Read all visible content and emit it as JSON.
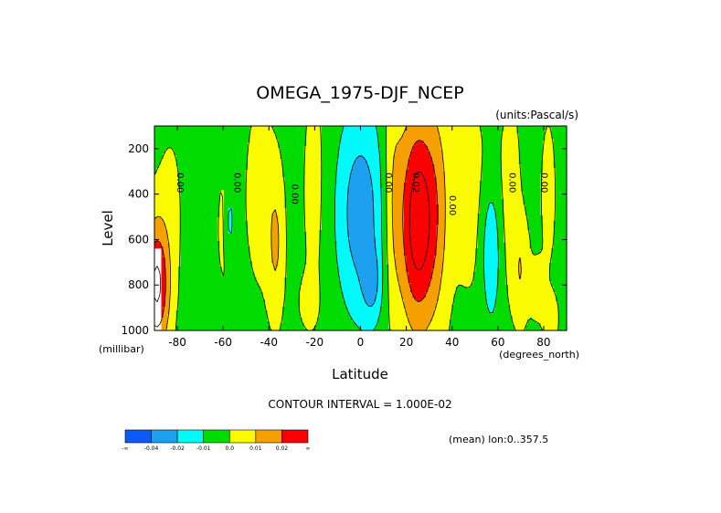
{
  "chart_data": {
    "type": "heatmap",
    "title": "OMEGA_1975-DJF_NCEP",
    "units_label": "(units:Pascal/s)",
    "xlabel": "Latitude",
    "ylabel": "Level",
    "x_unit_label": "(degrees_north)",
    "y_unit_label": "(millibar)",
    "xlim": [
      -90,
      90
    ],
    "ylim": [
      100,
      1000
    ],
    "y_reversed": true,
    "x_ticks": [
      -80,
      -60,
      -40,
      -20,
      0,
      20,
      40,
      60,
      80
    ],
    "y_ticks": [
      200,
      400,
      600,
      800,
      1000
    ],
    "contour_interval_label": "CONTOUR INTERVAL = 1.000E-02",
    "mean_label": "(mean) lon:0..357.5",
    "legend": {
      "colors": [
        "#0a5af5",
        "#1ea0f0",
        "#00fafa",
        "#00dc00",
        "#fafa00",
        "#f5a000",
        "#fa0000"
      ],
      "labels": [
        "-∞",
        "-0.04",
        "-0.02",
        "-0.01",
        "0.0",
        "0.01",
        "0.02",
        "∞"
      ],
      "bounds": [
        -1,
        -0.04,
        -0.02,
        -0.01,
        0.0,
        0.01,
        0.02,
        1
      ]
    },
    "contour_labels": [
      {
        "text": "0.00",
        "lat": -80,
        "lev": 350
      },
      {
        "text": "0.00",
        "lat": -55,
        "lev": 350
      },
      {
        "text": "0.00",
        "lat": -30,
        "lev": 400
      },
      {
        "text": "0.00",
        "lat": 11,
        "lev": 350
      },
      {
        "text": "0.02",
        "lat": 23,
        "lev": 350
      },
      {
        "text": "0.00",
        "lat": 39,
        "lev": 450
      },
      {
        "text": "0.00",
        "lat": 65,
        "lev": 350
      },
      {
        "text": "0.00",
        "lat": 79,
        "lev": 350
      }
    ]
  }
}
